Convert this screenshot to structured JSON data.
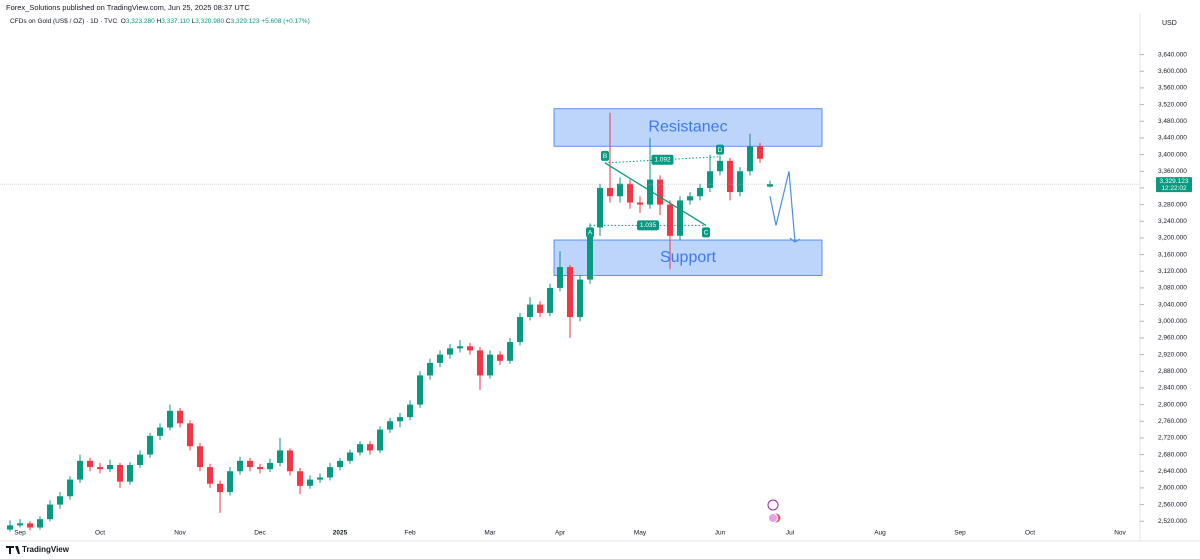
{
  "header": {
    "published": "Forex_Solutions published on TradingView.com, Jun 25, 2025 08:37 UTC",
    "symbol": "CFDs on Gold (US$ / OZ) · 1D · TVC",
    "open_key": "O",
    "open": "3,323.280",
    "high_key": "H",
    "high": "3,337.110",
    "low_key": "L",
    "low": "3,320.980",
    "close_key": "C",
    "close": "3,329.123",
    "change": "+5.608 (+0.17%)"
  },
  "footer": {
    "brand": "TradingView"
  },
  "chart_data": {
    "type": "candlestick",
    "currency": "USD",
    "up_color": "#089981",
    "down_color": "#f23645",
    "categories": [
      null,
      "Sep",
      null,
      null,
      null,
      null,
      null,
      null,
      null,
      "Oct",
      null,
      null,
      null,
      null,
      null,
      null,
      null,
      "Nov",
      null,
      null,
      null,
      null,
      null,
      null,
      null,
      "Dec",
      null,
      null,
      null,
      null,
      null,
      null,
      null,
      "2025",
      null,
      null,
      null,
      null,
      null,
      null,
      "Feb",
      null,
      null,
      null,
      null,
      null,
      null,
      null,
      "Mar",
      null,
      null,
      null,
      null,
      null,
      null,
      "Apr",
      null,
      null,
      null,
      null,
      null,
      null,
      null,
      "May",
      null,
      null,
      null,
      null,
      null,
      null,
      null,
      "Jun",
      null,
      null,
      null,
      null,
      null,
      null,
      "Jul",
      null,
      null,
      null,
      null,
      null,
      null,
      null,
      null,
      "Aug",
      null,
      null,
      null,
      null,
      null,
      null,
      null,
      "Sep",
      null,
      null,
      null,
      null,
      null,
      null,
      "Oct",
      null,
      null,
      null,
      null,
      null,
      null,
      null,
      null,
      "Nov",
      null
    ],
    "open": [
      2500,
      2510,
      2515,
      2505,
      2525,
      2560,
      2580,
      2620,
      2665,
      2650,
      2645,
      2655,
      2615,
      2655,
      2680,
      2725,
      2745,
      2785,
      2755,
      2700,
      2650,
      2610,
      2590,
      2640,
      2665,
      2650,
      2645,
      2660,
      2690,
      2640,
      2605,
      2620,
      2625,
      2650,
      2665,
      2685,
      2705,
      2690,
      2740,
      2760,
      2770,
      2800,
      2870,
      2900,
      2920,
      2935,
      2940,
      2930,
      2870,
      2920,
      2905,
      2950,
      3010,
      3040,
      3020,
      3080,
      3130,
      3010,
      3100,
      3225,
      3320,
      3300,
      3330,
      3285,
      3280,
      3340,
      3280,
      3205,
      3290,
      3300,
      3320,
      3360,
      3385,
      3310,
      3360,
      3420,
      3323.28,
      null,
      null,
      null,
      null,
      null,
      null,
      null,
      null,
      null,
      null,
      null,
      null,
      null,
      null,
      null,
      null,
      null,
      null,
      null,
      null,
      null,
      null,
      null,
      null,
      null,
      null,
      null,
      null,
      null,
      null,
      null,
      null,
      null,
      null,
      null,
      null
    ],
    "high": [
      2522,
      2525,
      2520,
      2532,
      2570,
      2590,
      2628,
      2680,
      2672,
      2660,
      2668,
      2660,
      2662,
      2690,
      2732,
      2755,
      2800,
      2792,
      2762,
      2708,
      2658,
      2618,
      2650,
      2675,
      2672,
      2658,
      2670,
      2720,
      2695,
      2648,
      2630,
      2635,
      2660,
      2672,
      2692,
      2712,
      2712,
      2748,
      2768,
      2780,
      2810,
      2880,
      2910,
      2930,
      2945,
      2955,
      2948,
      2938,
      2930,
      2928,
      2960,
      3020,
      3058,
      3048,
      3090,
      3168,
      3135,
      3110,
      3235,
      3330,
      3500,
      3345,
      3340,
      3300,
      3440,
      3350,
      3290,
      3300,
      3310,
      3330,
      3400,
      3398,
      3392,
      3370,
      3450,
      3428,
      3337.11,
      null,
      null,
      null,
      null,
      null,
      null,
      null,
      null,
      null,
      null,
      null,
      null,
      null,
      null,
      null,
      null,
      null,
      null,
      null,
      null,
      null,
      null,
      null,
      null,
      null,
      null,
      null,
      null,
      null,
      null,
      null,
      null,
      null,
      null,
      null,
      null
    ],
    "low": [
      2495,
      2505,
      2498,
      2500,
      2520,
      2550,
      2572,
      2612,
      2640,
      2635,
      2638,
      2600,
      2608,
      2648,
      2672,
      2715,
      2738,
      2745,
      2690,
      2640,
      2600,
      2540,
      2582,
      2632,
      2640,
      2635,
      2638,
      2652,
      2630,
      2585,
      2598,
      2612,
      2618,
      2642,
      2658,
      2678,
      2680,
      2684,
      2732,
      2745,
      2762,
      2792,
      2860,
      2890,
      2910,
      2925,
      2920,
      2835,
      2862,
      2895,
      2898,
      2942,
      3002,
      3010,
      3012,
      3072,
      2960,
      3000,
      3090,
      3205,
      3285,
      3285,
      3270,
      3260,
      3270,
      3255,
      3125,
      3195,
      3280,
      3290,
      3310,
      3350,
      3290,
      3300,
      3350,
      3380,
      3320.98,
      null,
      null,
      null,
      null,
      null,
      null,
      null,
      null,
      null,
      null,
      null,
      null,
      null,
      null,
      null,
      null,
      null,
      null,
      null,
      null,
      null,
      null,
      null,
      null,
      null,
      null,
      null,
      null,
      null,
      null,
      null,
      null,
      null,
      null,
      null,
      null
    ],
    "close": [
      2510,
      2515,
      2505,
      2525,
      2560,
      2580,
      2620,
      2665,
      2650,
      2645,
      2655,
      2615,
      2655,
      2680,
      2725,
      2745,
      2785,
      2755,
      2700,
      2650,
      2610,
      2590,
      2640,
      2665,
      2650,
      2645,
      2660,
      2690,
      2640,
      2605,
      2620,
      2625,
      2650,
      2665,
      2685,
      2705,
      2690,
      2740,
      2760,
      2770,
      2800,
      2870,
      2900,
      2920,
      2935,
      2940,
      2930,
      2870,
      2920,
      2905,
      2950,
      3010,
      3040,
      3020,
      3080,
      3130,
      3010,
      3100,
      3225,
      3320,
      3300,
      3330,
      3285,
      3280,
      3340,
      3280,
      3205,
      3290,
      3300,
      3320,
      3360,
      3385,
      3310,
      3360,
      3420,
      3390,
      3329.123,
      null,
      null,
      null,
      null,
      null,
      null,
      null,
      null,
      null,
      null,
      null,
      null,
      null,
      null,
      null,
      null,
      null,
      null,
      null,
      null,
      null,
      null,
      null,
      null,
      null,
      null,
      null,
      null,
      null,
      null,
      null,
      null,
      null,
      null,
      null,
      null
    ],
    "last_price_label": "3,329.123",
    "countdown": "12:22:02",
    "ylim": [
      2499,
      3699
    ],
    "yticks": [
      {
        "value": 2520,
        "label": "2,520.000"
      },
      {
        "value": 2560,
        "label": "2,560.000"
      },
      {
        "value": 2600,
        "label": "2,600.000"
      },
      {
        "value": 2640,
        "label": "2,640.000"
      },
      {
        "value": 2680,
        "label": "2,680.000"
      },
      {
        "value": 2720,
        "label": "2,720.000"
      },
      {
        "value": 2760,
        "label": "2,760.000"
      },
      {
        "value": 2800,
        "label": "2,800.000"
      },
      {
        "value": 2840,
        "label": "2,840.000"
      },
      {
        "value": 2880,
        "label": "2,880.000"
      },
      {
        "value": 2920,
        "label": "2,920.000"
      },
      {
        "value": 2960,
        "label": "2,960.000"
      },
      {
        "value": 3000,
        "label": "3,000.000"
      },
      {
        "value": 3040,
        "label": "3,040.000"
      },
      {
        "value": 3080,
        "label": "3,080.000"
      },
      {
        "value": 3120,
        "label": "3,120.000"
      },
      {
        "value": 3160,
        "label": "3,160.000"
      },
      {
        "value": 3200,
        "label": "3,200.000"
      },
      {
        "value": 3240,
        "label": "3,240.000"
      },
      {
        "value": 3280,
        "label": "3,280.000"
      },
      {
        "value": 3320,
        "label": "3,320.000"
      },
      {
        "value": 3360,
        "label": "3,360.000"
      },
      {
        "value": 3400,
        "label": "3,400.000"
      },
      {
        "value": 3440,
        "label": "3,440.000"
      },
      {
        "value": 3480,
        "label": "3,480.000"
      },
      {
        "value": 3520,
        "label": "3,520.000"
      },
      {
        "value": 3560,
        "label": "3,560.000"
      },
      {
        "value": 3600,
        "label": "3,600.000"
      },
      {
        "value": 3640,
        "label": "3,640.000"
      }
    ],
    "zones": [
      {
        "text": "Resistanec",
        "from": 54.4,
        "to": 81.2,
        "low": 3420,
        "high": 3510
      },
      {
        "text": "Support",
        "from": 54.4,
        "to": 81.2,
        "low": 3110,
        "high": 3195
      }
    ],
    "pattern": {
      "points": [
        {
          "label": "A",
          "index": 58,
          "price": 3230
        },
        {
          "label": "B",
          "index": 59.5,
          "price": 3380
        },
        {
          "label": "C",
          "index": 69.6,
          "price": 3230
        },
        {
          "label": "D",
          "index": 71,
          "price": 3395
        }
      ],
      "ratio_ac": "1.035",
      "ratio_bd": "1.092"
    },
    "projection": {
      "index": [
        76,
        76.6,
        77.9,
        78.5
      ],
      "price": [
        3300,
        3230,
        3360,
        3190
      ]
    }
  }
}
